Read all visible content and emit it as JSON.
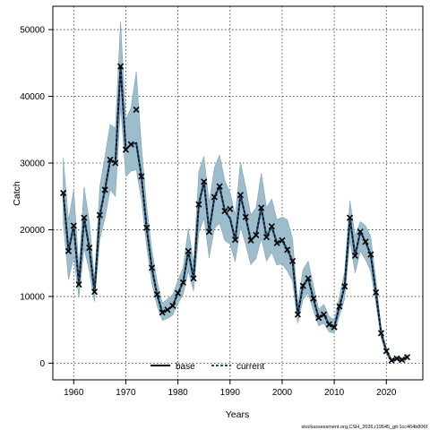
{
  "chart_data": {
    "type": "line",
    "xlabel": "Years",
    "ylabel": "Catch",
    "xlim": [
      1956,
      2027
    ],
    "ylim": [
      -2500,
      53500
    ],
    "x_ticks": [
      1960,
      1970,
      1980,
      1990,
      2000,
      2010,
      2020
    ],
    "y_ticks": [
      0,
      10000,
      20000,
      30000,
      40000,
      50000
    ],
    "grid": true,
    "legend_position": "bottom",
    "colors": {
      "band": "#9dbccc",
      "band_edge": "#7ea4b8",
      "base": "#000000",
      "current": "#1f4e7a",
      "observed": "#000000"
    },
    "series": [
      {
        "name": "base",
        "style": "solid",
        "x": [
          1958,
          1959,
          1960,
          1961,
          1962,
          1963,
          1964,
          1965,
          1966,
          1967,
          1968,
          1969,
          1970,
          1971,
          1972,
          1973,
          1974,
          1975,
          1976,
          1977,
          1978,
          1979,
          1980,
          1981,
          1982,
          1983,
          1984,
          1985,
          1986,
          1987,
          1988,
          1989,
          1990,
          1991,
          1992,
          1993,
          1994,
          1995,
          1996,
          1997,
          1998,
          1999,
          2000,
          2001,
          2002,
          2003,
          2004,
          2005,
          2006,
          2007,
          2008,
          2009,
          2010,
          2011,
          2012,
          2013,
          2014,
          2015,
          2016,
          2017,
          2018,
          2019,
          2020,
          2021,
          2022,
          2023,
          2024
        ],
        "y": [
          25500,
          16800,
          20600,
          11800,
          21800,
          17300,
          10700,
          22200,
          26000,
          30500,
          30000,
          44500,
          32000,
          32800,
          33000,
          28000,
          20300,
          14300,
          10300,
          7600,
          8000,
          8600,
          10500,
          12100,
          16800,
          12700,
          23800,
          27200,
          19700,
          24900,
          26500,
          22800,
          21700,
          18500,
          25200,
          21900,
          18400,
          19200,
          23300,
          18900,
          20500,
          18000,
          18400,
          17000,
          15300,
          7300,
          11600,
          12700,
          9700,
          6800,
          7300,
          5800,
          5400,
          8500,
          11500,
          21800,
          16100,
          19700,
          18200,
          16300,
          10600,
          4500,
          1800,
          400,
          700,
          500,
          900
        ]
      },
      {
        "name": "current",
        "style": "dashed",
        "x": [
          1958,
          1959,
          1960,
          1961,
          1962,
          1963,
          1964,
          1965,
          1966,
          1967,
          1968,
          1969,
          1970,
          1971,
          1972,
          1973,
          1974,
          1975,
          1976,
          1977,
          1978,
          1979,
          1980,
          1981,
          1982,
          1983,
          1984,
          1985,
          1986,
          1987,
          1988,
          1989,
          1990,
          1991,
          1992,
          1993,
          1994,
          1995,
          1996,
          1997,
          1998,
          1999,
          2000,
          2001,
          2002,
          2003,
          2004,
          2005,
          2006,
          2007,
          2008,
          2009,
          2010,
          2011,
          2012,
          2013,
          2014,
          2015,
          2016,
          2017,
          2018,
          2019,
          2020,
          2021,
          2022,
          2023,
          2024
        ],
        "y": [
          25500,
          16800,
          20600,
          11800,
          21800,
          17300,
          10700,
          22200,
          26000,
          30500,
          30000,
          44500,
          32000,
          32800,
          33000,
          28000,
          20300,
          14300,
          10300,
          7600,
          8000,
          8600,
          10500,
          12100,
          16800,
          12700,
          23800,
          27200,
          19700,
          24900,
          26500,
          22800,
          21700,
          18500,
          25200,
          21900,
          18400,
          19200,
          23300,
          18900,
          20500,
          18000,
          18400,
          17000,
          15300,
          7300,
          11600,
          12700,
          9700,
          6800,
          7300,
          5800,
          5400,
          8500,
          11500,
          21800,
          16100,
          19700,
          18200,
          16300,
          10600,
          4500,
          1800,
          400,
          700,
          500,
          900
        ]
      }
    ],
    "interval": {
      "x": [
        1958,
        1959,
        1960,
        1961,
        1962,
        1963,
        1964,
        1965,
        1966,
        1967,
        1968,
        1969,
        1970,
        1971,
        1972,
        1973,
        1974,
        1975,
        1976,
        1977,
        1978,
        1979,
        1980,
        1981,
        1982,
        1983,
        1984,
        1985,
        1986,
        1987,
        1988,
        1989,
        1990,
        1991,
        1992,
        1993,
        1994,
        1995,
        1996,
        1997,
        1998,
        1999,
        2000,
        2001,
        2002,
        2003,
        2004,
        2005,
        2006,
        2007,
        2008,
        2009,
        2010,
        2011,
        2012,
        2013,
        2014,
        2015,
        2016,
        2017,
        2018,
        2019,
        2020,
        2021,
        2022,
        2023,
        2024
      ],
      "lower": [
        21000,
        12500,
        16000,
        9800,
        17200,
        13800,
        9200,
        18500,
        21800,
        26000,
        25000,
        38500,
        28000,
        28800,
        29000,
        24500,
        17500,
        12000,
        8600,
        6400,
        6700,
        7200,
        8900,
        10300,
        13800,
        10800,
        19500,
        21800,
        15800,
        20200,
        21000,
        18400,
        17800,
        15200,
        20500,
        17800,
        14800,
        15700,
        18700,
        15300,
        16600,
        14700,
        14900,
        13800,
        12300,
        6000,
        9500,
        10500,
        7900,
        5600,
        6000,
        4700,
        4500,
        7100,
        9600,
        18500,
        13500,
        16800,
        15500,
        13800,
        9000,
        3700,
        1300,
        200,
        400,
        200,
        500
      ],
      "upper": [
        30800,
        21400,
        26000,
        14300,
        26400,
        21200,
        12500,
        26500,
        31000,
        35800,
        35200,
        51200,
        36500,
        38300,
        43700,
        32500,
        23600,
        17000,
        12300,
        9000,
        9600,
        10300,
        12400,
        14300,
        20200,
        15000,
        28700,
        31000,
        24000,
        29300,
        31200,
        27300,
        25600,
        22200,
        30100,
        26400,
        22200,
        23300,
        28500,
        23300,
        24600,
        21500,
        21900,
        21500,
        18600,
        8800,
        14000,
        15300,
        11700,
        8100,
        8800,
        7000,
        6500,
        10000,
        13700,
        24400,
        19100,
        21200,
        20600,
        19000,
        12500,
        5300,
        2300,
        600,
        1000,
        800,
        1300
      ]
    },
    "observed": {
      "name": "observed",
      "marker": "x",
      "x": [
        1958,
        1959,
        1960,
        1961,
        1962,
        1963,
        1964,
        1965,
        1966,
        1967,
        1968,
        1969,
        1970,
        1971,
        1972,
        1973,
        1974,
        1975,
        1976,
        1977,
        1978,
        1979,
        1980,
        1981,
        1982,
        1983,
        1984,
        1985,
        1986,
        1987,
        1988,
        1989,
        1990,
        1991,
        1992,
        1993,
        1994,
        1995,
        1996,
        1997,
        1998,
        1999,
        2000,
        2001,
        2002,
        2003,
        2004,
        2005,
        2006,
        2007,
        2008,
        2009,
        2010,
        2011,
        2012,
        2013,
        2014,
        2015,
        2016,
        2017,
        2018,
        2019,
        2020,
        2021,
        2022,
        2023,
        2024
      ],
      "y": [
        25500,
        16800,
        20600,
        11800,
        21800,
        17300,
        10700,
        22200,
        26000,
        30500,
        30000,
        44500,
        32000,
        32800,
        38000,
        28000,
        20300,
        14300,
        10300,
        7600,
        8000,
        8600,
        10500,
        12100,
        16800,
        12700,
        23800,
        27200,
        19700,
        24900,
        26500,
        22800,
        23100,
        18500,
        25200,
        21900,
        18400,
        19200,
        23300,
        18900,
        20500,
        18000,
        18400,
        17000,
        15300,
        7300,
        11600,
        12700,
        9700,
        6800,
        7300,
        5800,
        5400,
        8500,
        11500,
        21800,
        16100,
        19700,
        18200,
        16300,
        10600,
        4500,
        1800,
        400,
        700,
        500,
        900
      ]
    },
    "legend": [
      "base",
      "current"
    ],
    "footer": "stockassessment.org,CSH_2026,r19545_git:1cc464b806f"
  }
}
